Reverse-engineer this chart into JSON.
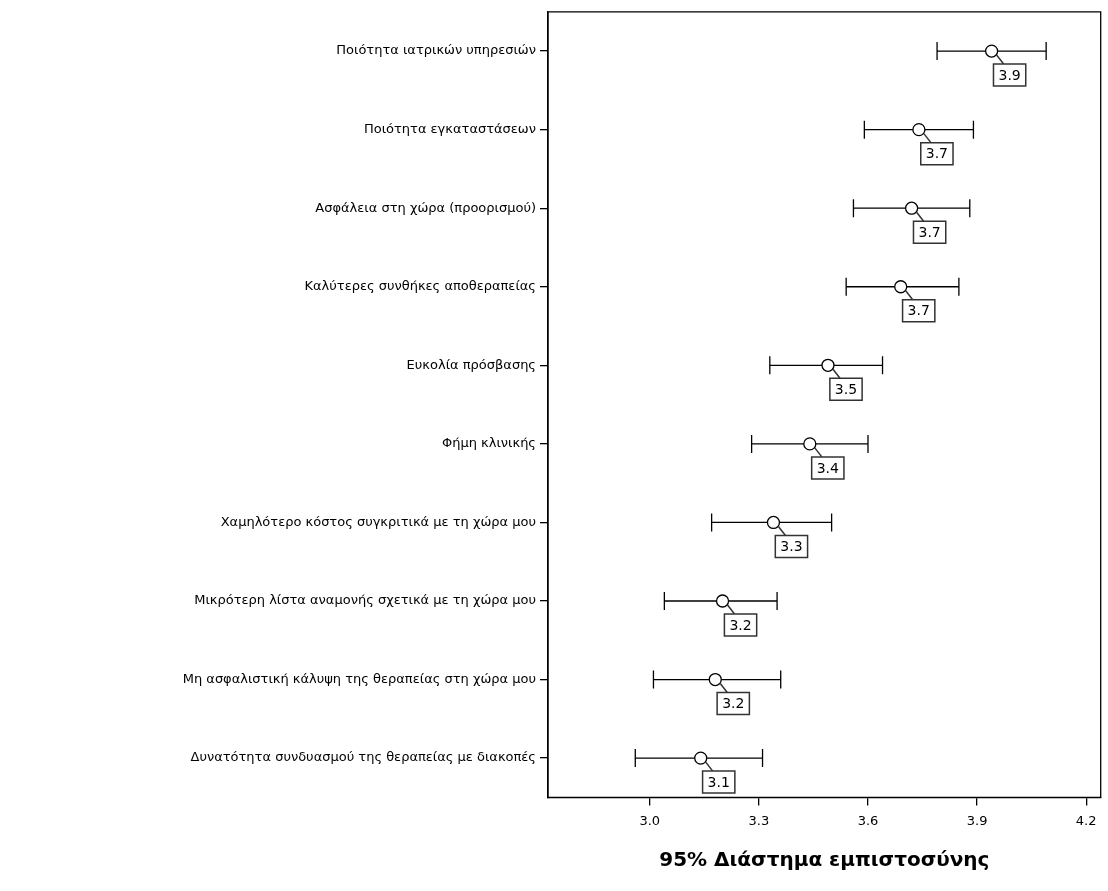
{
  "chart_data": {
    "type": "scatter",
    "orientation": "horizontal",
    "xlabel": "95% Διάστημα εμπιστοσύνης",
    "categories": [
      "Ποιότητα ιατρικών υπηρεσιών",
      "Ποιότητα εγκαταστάσεων",
      "Ασφάλεια στη χώρα (προορισμού)",
      "Καλύτερες συνθήκες αποθεραπείας",
      "Ευκολία πρόσβασης",
      "Φήμη κλινικής",
      "Χαμηλότερο κόστος συγκριτικά με τη χώρα μου",
      "Μικρότερη λίστα αναμονής σχετικά με τη χώρα μου",
      "Μη ασφαλιστική κάλυψη της θεραπείας στη χώρα μου",
      "Δυνατότητα συνδυασμού της θεραπείας με διακοπές"
    ],
    "values": [
      3.94,
      3.74,
      3.72,
      3.69,
      3.49,
      3.44,
      3.34,
      3.2,
      3.18,
      3.14
    ],
    "errors": [
      [
        3.79,
        4.09
      ],
      [
        3.59,
        3.89
      ],
      [
        3.56,
        3.88
      ],
      [
        3.54,
        3.85
      ],
      [
        3.33,
        3.64
      ],
      [
        3.28,
        3.6
      ],
      [
        3.17,
        3.5
      ],
      [
        3.04,
        3.35
      ],
      [
        3.01,
        3.36
      ],
      [
        2.96,
        3.31
      ]
    ],
    "value_labels": [
      "3.9",
      "3.7",
      "3.7",
      "3.7",
      "3.5",
      "3.4",
      "3.3",
      "3.2",
      "3.2",
      "3.1"
    ],
    "color": "#000000",
    "marker": "circle",
    "legend": false,
    "xlim": [
      2.72,
      4.24
    ],
    "xticks": [
      {
        "value": 3,
        "label": "3.0"
      },
      3.3,
      3.6,
      3.9,
      4.2
    ]
  }
}
